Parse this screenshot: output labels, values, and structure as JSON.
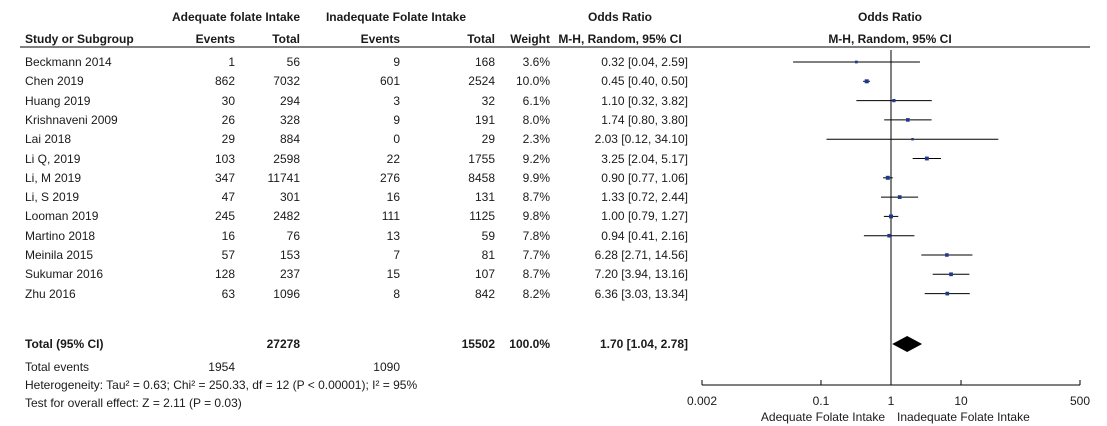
{
  "header": {
    "group1": "Adequate folate Intake",
    "group2": "Inadequate Folate Intake",
    "or_title": "Odds Ratio",
    "col_study": "Study or Subgroup",
    "col_events1": "Events",
    "col_total1": "Total",
    "col_events2": "Events",
    "col_total2": "Total",
    "col_weight": "Weight",
    "col_method": "M-H, Random, 95% CI",
    "plot_title": "Odds Ratio",
    "plot_method": "M-H, Random, 95% CI"
  },
  "studies": [
    {
      "name": "Beckmann 2014",
      "e1": "1",
      "t1": "56",
      "e2": "9",
      "t2": "168",
      "weight": "3.6%",
      "ci_text": "0.32 [0.04, 2.59]"
    },
    {
      "name": "Chen 2019",
      "e1": "862",
      "t1": "7032",
      "e2": "601",
      "t2": "2524",
      "weight": "10.0%",
      "ci_text": "0.45 [0.40, 0.50]"
    },
    {
      "name": "Huang 2019",
      "e1": "30",
      "t1": "294",
      "e2": "3",
      "t2": "32",
      "weight": "6.1%",
      "ci_text": "1.10 [0.32, 3.82]"
    },
    {
      "name": "Krishnaveni 2009",
      "e1": "26",
      "t1": "328",
      "e2": "9",
      "t2": "191",
      "weight": "8.0%",
      "ci_text": "1.74 [0.80, 3.80]"
    },
    {
      "name": "Lai 2018",
      "e1": "29",
      "t1": "884",
      "e2": "0",
      "t2": "29",
      "weight": "2.3%",
      "ci_text": "2.03 [0.12, 34.10]"
    },
    {
      "name": "Li Q, 2019",
      "e1": "103",
      "t1": "2598",
      "e2": "22",
      "t2": "1755",
      "weight": "9.2%",
      "ci_text": "3.25 [2.04, 5.17]"
    },
    {
      "name": "Li, M 2019",
      "e1": "347",
      "t1": "11741",
      "e2": "276",
      "t2": "8458",
      "weight": "9.9%",
      "ci_text": "0.90 [0.77, 1.06]"
    },
    {
      "name": "Li, S 2019",
      "e1": "47",
      "t1": "301",
      "e2": "16",
      "t2": "131",
      "weight": "8.7%",
      "ci_text": "1.33 [0.72, 2.44]"
    },
    {
      "name": "Looman 2019",
      "e1": "245",
      "t1": "2482",
      "e2": "111",
      "t2": "1125",
      "weight": "9.8%",
      "ci_text": "1.00 [0.79, 1.27]"
    },
    {
      "name": "Martino 2018",
      "e1": "16",
      "t1": "76",
      "e2": "13",
      "t2": "59",
      "weight": "7.8%",
      "ci_text": "0.94 [0.41, 2.16]"
    },
    {
      "name": "Meinila 2015",
      "e1": "57",
      "t1": "153",
      "e2": "7",
      "t2": "81",
      "weight": "7.7%",
      "ci_text": "6.28 [2.71, 14.56]"
    },
    {
      "name": "Sukumar 2016",
      "e1": "128",
      "t1": "237",
      "e2": "15",
      "t2": "107",
      "weight": "8.7%",
      "ci_text": "7.20 [3.94, 13.16]"
    },
    {
      "name": "Zhu 2016",
      "e1": "63",
      "t1": "1096",
      "e2": "8",
      "t2": "842",
      "weight": "8.2%",
      "ci_text": "6.36 [3.03, 13.34]"
    }
  ],
  "total": {
    "label": "Total (95% CI)",
    "t1": "27278",
    "t2": "15502",
    "weight": "100.0%",
    "ci_text": "1.70 [1.04, 2.78]"
  },
  "total_events": {
    "label": "Total events",
    "e1": "1954",
    "e2": "1090"
  },
  "heterogeneity": "Heterogeneity: Tau² = 0.63; Chi² = 250.33, df = 12 (P < 0.00001); I² = 95%",
  "overall_effect": "Test for overall effect: Z = 2.11 (P = 0.03)",
  "axis": {
    "ticks": [
      "0.002",
      "0.1",
      "1",
      "10",
      "500"
    ],
    "left_label": "Adequate Folate Intake",
    "right_label": "Inadequate Folate Intake"
  },
  "colors": {
    "square": "#1f3a8a",
    "line": "#000000",
    "diamond": "#000000"
  },
  "chart_data": {
    "type": "forest",
    "scale": "log",
    "xlim": [
      0.002,
      500
    ],
    "null_line": 1,
    "points": [
      {
        "study": "Beckmann 2014",
        "or": 0.32,
        "lo": 0.04,
        "hi": 2.59,
        "weight": 3.6
      },
      {
        "study": "Chen 2019",
        "or": 0.45,
        "lo": 0.4,
        "hi": 0.5,
        "weight": 10.0
      },
      {
        "study": "Huang 2019",
        "or": 1.1,
        "lo": 0.32,
        "hi": 3.82,
        "weight": 6.1
      },
      {
        "study": "Krishnaveni 2009",
        "or": 1.74,
        "lo": 0.8,
        "hi": 3.8,
        "weight": 8.0
      },
      {
        "study": "Lai 2018",
        "or": 2.03,
        "lo": 0.12,
        "hi": 34.1,
        "weight": 2.3
      },
      {
        "study": "Li Q, 2019",
        "or": 3.25,
        "lo": 2.04,
        "hi": 5.17,
        "weight": 9.2
      },
      {
        "study": "Li, M 2019",
        "or": 0.9,
        "lo": 0.77,
        "hi": 1.06,
        "weight": 9.9
      },
      {
        "study": "Li, S 2019",
        "or": 1.33,
        "lo": 0.72,
        "hi": 2.44,
        "weight": 8.7
      },
      {
        "study": "Looman 2019",
        "or": 1.0,
        "lo": 0.79,
        "hi": 1.27,
        "weight": 9.8
      },
      {
        "study": "Martino 2018",
        "or": 0.94,
        "lo": 0.41,
        "hi": 2.16,
        "weight": 7.8
      },
      {
        "study": "Meinila 2015",
        "or": 6.28,
        "lo": 2.71,
        "hi": 14.56,
        "weight": 7.7
      },
      {
        "study": "Sukumar 2016",
        "or": 7.2,
        "lo": 3.94,
        "hi": 13.16,
        "weight": 8.7
      },
      {
        "study": "Zhu 2016",
        "or": 6.36,
        "lo": 3.03,
        "hi": 13.34,
        "weight": 8.2
      }
    ],
    "pooled": {
      "or": 1.7,
      "lo": 1.04,
      "hi": 2.78
    }
  }
}
